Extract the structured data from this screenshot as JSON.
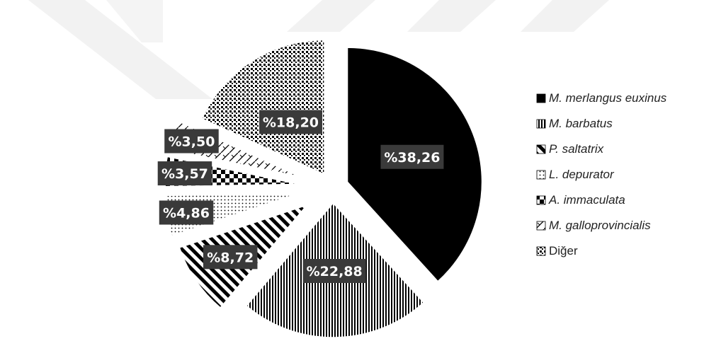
{
  "chart_data": {
    "type": "pie",
    "exploded": true,
    "slices": [
      {
        "name": "M. merlangus euxinus",
        "value": 38.26,
        "label": "%38,26",
        "italic": true,
        "pattern": "solid"
      },
      {
        "name": "M. barbatus",
        "value": 22.88,
        "label": "%22,88",
        "italic": true,
        "pattern": "vertical-lines"
      },
      {
        "name": "P. saltatrix",
        "value": 8.72,
        "label": "%8,72",
        "italic": true,
        "pattern": "diagonal-stripes"
      },
      {
        "name": "L. depurator",
        "value": 4.86,
        "label": "%4,86",
        "italic": true,
        "pattern": "dots-light"
      },
      {
        "name": "A. immaculata",
        "value": 3.57,
        "label": "%3,57",
        "italic": true,
        "pattern": "checker"
      },
      {
        "name": "M. galloprovincialis",
        "value": 3.5,
        "label": "%3,50",
        "italic": true,
        "pattern": "diagonal-hatch"
      },
      {
        "name": "Diğer",
        "value": 18.2,
        "label": "%18,20",
        "italic": false,
        "pattern": "dots-dense"
      }
    ],
    "legend_position": "right",
    "colors": {
      "primary": "#000000",
      "label_box": "#3a3a3a",
      "watermark": "#f1f1f1"
    }
  }
}
